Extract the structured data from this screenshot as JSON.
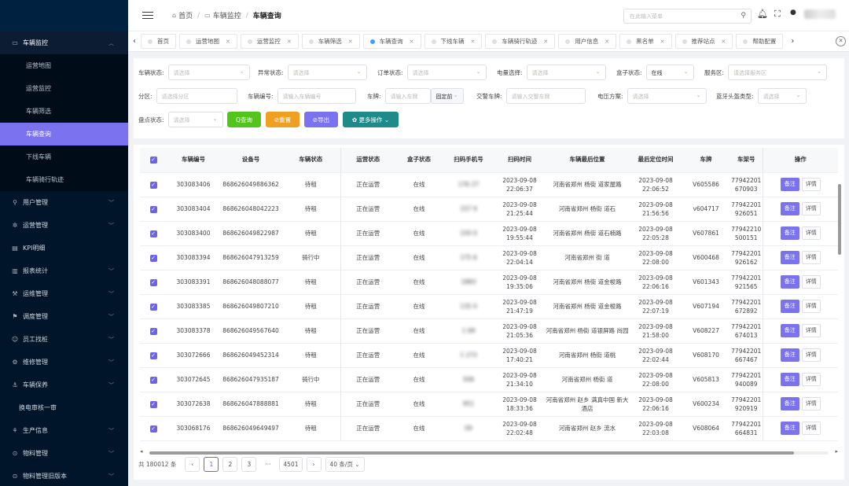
{
  "sidebar": {
    "groups": [
      {
        "label": "车辆监控",
        "icon": "monitor-icon",
        "open": true
      },
      {
        "label": "用户管理",
        "icon": "user-icon"
      },
      {
        "label": "运营管理",
        "icon": "gear-icon"
      },
      {
        "label": "KPI明细",
        "icon": "list-icon"
      },
      {
        "label": "报表统计",
        "icon": "chart-icon"
      },
      {
        "label": "运维管理",
        "icon": "wrench-icon"
      },
      {
        "label": "调度管理",
        "icon": "dispatch-icon"
      },
      {
        "label": "员工找桩",
        "icon": "staff-icon"
      },
      {
        "label": "维修管理",
        "icon": "repair-icon"
      },
      {
        "label": "车辆保养",
        "icon": "maintain-icon"
      },
      {
        "label": "换电审核一审"
      },
      {
        "label": "生产信息",
        "icon": "factory-icon"
      },
      {
        "label": "物料管理",
        "icon": "box-icon"
      },
      {
        "label": "物料管理旧版本",
        "icon": "box-icon"
      }
    ],
    "sub_items": [
      "运营地图",
      "运营监控",
      "车辆筛选",
      "车辆查询",
      "下线车辆",
      "车辆骑行轨迹"
    ]
  },
  "header": {
    "breadcrumb": [
      "首页",
      "车辆监控",
      "车辆查询"
    ],
    "search_placeholder": "在此输入菜单"
  },
  "tabs": [
    "首页",
    "运营地图",
    "运营监控",
    "车辆筛选",
    "车辆查询",
    "下线车辆",
    "车辆骑行轨迹",
    "用户信息",
    "黑名单",
    "推荐站点",
    "帮助配置"
  ],
  "filters": {
    "vehicle_status": {
      "label": "车辆状态:",
      "placeholder": "请选择"
    },
    "abnormal_status": {
      "label": "异常状态:",
      "placeholder": "请选择"
    },
    "order_status": {
      "label": "订单状态:",
      "placeholder": "请选择"
    },
    "battery": {
      "label": "电量选择:",
      "placeholder": "请选择"
    },
    "box_status": {
      "label": "盒子状态:",
      "value": "在线"
    },
    "service_area": {
      "label": "服务区:",
      "placeholder": "请选择服务区"
    },
    "zone": {
      "label": "分区:",
      "placeholder": "请选择分区"
    },
    "vehicle_no": {
      "label": "车辆编号:",
      "placeholder": "请输入车辆编号"
    },
    "plate": {
      "label": "车牌:",
      "placeholder": "请输入车牌",
      "mode": "固定前"
    },
    "police_plate": {
      "label": "交警车牌:",
      "placeholder": "请输入交警车牌"
    },
    "voltage": {
      "label": "电压方案:",
      "placeholder": "请选择"
    },
    "bt_helmet": {
      "label": "蓝牙头盔类型:",
      "placeholder": "请选择"
    },
    "inventory": {
      "label": "盘点状态:",
      "placeholder": "请选择"
    }
  },
  "buttons": {
    "query": "Q查询",
    "reset": "⊘重置",
    "export": "⊘导出",
    "more": "✿ 更多操作 ⌄"
  },
  "table": {
    "headers": [
      "车辆编号",
      "设备号",
      "车辆状态",
      "运营状态",
      "盒子状态",
      "扫码手机号",
      "扫码时间",
      "车辆最后位置",
      "最后定位时间",
      "车牌",
      "车架号",
      "操作"
    ],
    "rows": [
      {
        "no": "303083406",
        "dev": "868626049886362",
        "status": "待租",
        "op": "正在运营",
        "box": "在线",
        "phone": "176      27",
        "scan": "2023-09-08 22:06:37",
        "loc": "河南省郑州        杨街 道家屋路",
        "last": "2023-09-08 22:06:52",
        "plate": "V605586",
        "vin": "77942201 670903"
      },
      {
        "no": "303083404",
        "dev": "868626048042223",
        "status": "待租",
        "op": "正在运营",
        "box": "在线",
        "phone": "157      9",
        "scan": "2023-09-08 21:25:44",
        "loc": "河南省郑州        杨街 道石        ",
        "last": "2023-09-08 21:56:56",
        "plate": "v604717",
        "vin": "77942201 926051"
      },
      {
        "no": "303083400",
        "dev": "868626049822987",
        "status": "待租",
        "op": "正在运营",
        "box": "在线",
        "phone": "150      0",
        "scan": "2023-09-08 19:55:44",
        "loc": "河南省郑州        杨街 道石楠路",
        "last": "2023-09-08 22:05:28",
        "plate": "V607861",
        "vin": "77942210 500151"
      },
      {
        "no": "303083394",
        "dev": "868626047913259",
        "status": "骑行中",
        "op": "正在运营",
        "box": "在线",
        "phone": "175      6",
        "scan": "2023-09-08 22:04:14",
        "loc": "河南省郑州        街 道        ",
        "last": "2023-09-08 22:08:00",
        "plate": "V600468",
        "vin": "77942201 926162"
      },
      {
        "no": "303083391",
        "dev": "868626048088077",
        "status": "待租",
        "op": "正在运营",
        "box": "在线",
        "phone": "1883      ",
        "scan": "2023-09-08 19:35:06",
        "loc": "河南省郑州        杨街 道金梭路",
        "last": "2023-09-08 22:06:16",
        "plate": "V601343",
        "vin": "77942201 921565"
      },
      {
        "no": "303083385",
        "dev": "868626049807210",
        "status": "待租",
        "op": "正在运营",
        "box": "在线",
        "phone": "135      0",
        "scan": "2023-09-08 21:47:19",
        "loc": "河南省郑州        杨街 道金梭路",
        "last": "2023-09-08 22:07:19",
        "plate": "V607194",
        "vin": "77942201 672892"
      },
      {
        "no": "303083378",
        "dev": "868626049567640",
        "status": "待租",
        "op": "正在运营",
        "box": "在线",
        "phone": "1      68",
        "scan": "2023-09-08 21:05:36",
        "loc": "河南省郑州        杨街 道银屏路      尚园",
        "last": "2023-09-08 21:58:00",
        "plate": "V608227",
        "vin": "77942201 674013"
      },
      {
        "no": "303072666",
        "dev": "868626049452314",
        "status": "待租",
        "op": "正在运营",
        "box": "在线",
        "phone": "1      273",
        "scan": "2023-09-08 17:40:21",
        "loc": "河南省郑州        杨街 道桃        ",
        "last": "2023-09-08 22:02:44",
        "plate": "V608170",
        "vin": "77942201 667467"
      },
      {
        "no": "303072645",
        "dev": "868626047935187",
        "status": "骑行中",
        "op": "正在运营",
        "box": "在线",
        "phone": "      506",
        "scan": "2023-09-08 21:34:10",
        "loc": "河南省郑州        杨街 道        ",
        "last": "2023-09-08 22:08:00",
        "plate": "V605813",
        "vin": "77942201 940089"
      },
      {
        "no": "303072638",
        "dev": "868626047888881",
        "status": "待租",
        "op": "正在运营",
        "box": "在线",
        "phone": "      951",
        "scan": "2023-09-08 18:33:36",
        "loc": "河南省郑州        赵乡 满真中国        新大 酒店",
        "last": "2023-09-08 22:06:16",
        "plate": "V600234",
        "vin": "77942201 920919"
      },
      {
        "no": "303068176",
        "dev": "868626049649497",
        "status": "待租",
        "op": "正在运营",
        "box": "在线",
        "phone": "      09",
        "scan": "2023-09-08 22:02:48",
        "loc": "河南省郑州        赵乡 流水        ",
        "last": "2023-09-08 22:03:08",
        "plate": "V608064",
        "vin": "77942201 664831"
      }
    ],
    "op_note": "备注",
    "op_detail": "详情"
  },
  "pagination": {
    "total": "共 180012 条",
    "pages": [
      "1",
      "2",
      "3",
      "···",
      "4501"
    ],
    "page_size": "40 条/页"
  }
}
